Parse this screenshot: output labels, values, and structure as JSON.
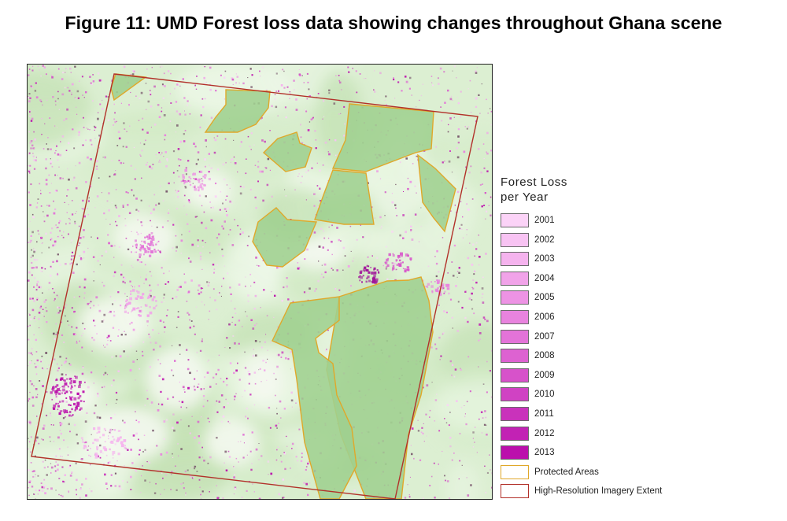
{
  "figure_title": "Figure 11: UMD Forest loss data showing changes throughout Ghana scene",
  "map": {
    "background_color": "#dcefd2",
    "protected_area_fill": "#9fd08f",
    "protected_area_outline": "#e0a82a",
    "imagery_extent_outline": "#b2312a",
    "loss_color_range": [
      "#f6c8f1",
      "#c30fb5"
    ]
  },
  "legend": {
    "title_line1": "Forest Loss",
    "title_line2": "per Year",
    "years": [
      {
        "label": "2001",
        "color": "#fbd3f7"
      },
      {
        "label": "2002",
        "color": "#f8c3f3"
      },
      {
        "label": "2003",
        "color": "#f5b3ee"
      },
      {
        "label": "2004",
        "color": "#f1a3e9"
      },
      {
        "label": "2005",
        "color": "#ed93e4"
      },
      {
        "label": "2006",
        "color": "#e883de"
      },
      {
        "label": "2007",
        "color": "#e373d8"
      },
      {
        "label": "2008",
        "color": "#dd62d1"
      },
      {
        "label": "2009",
        "color": "#d752ca"
      },
      {
        "label": "2010",
        "color": "#d042c3"
      },
      {
        "label": "2011",
        "color": "#c932bb"
      },
      {
        "label": "2012",
        "color": "#c222b4"
      },
      {
        "label": "2013",
        "color": "#bb10ac"
      }
    ],
    "protected_areas_label": "Protected Areas",
    "imagery_extent_label": "High-Resolution Imagery Extent"
  }
}
